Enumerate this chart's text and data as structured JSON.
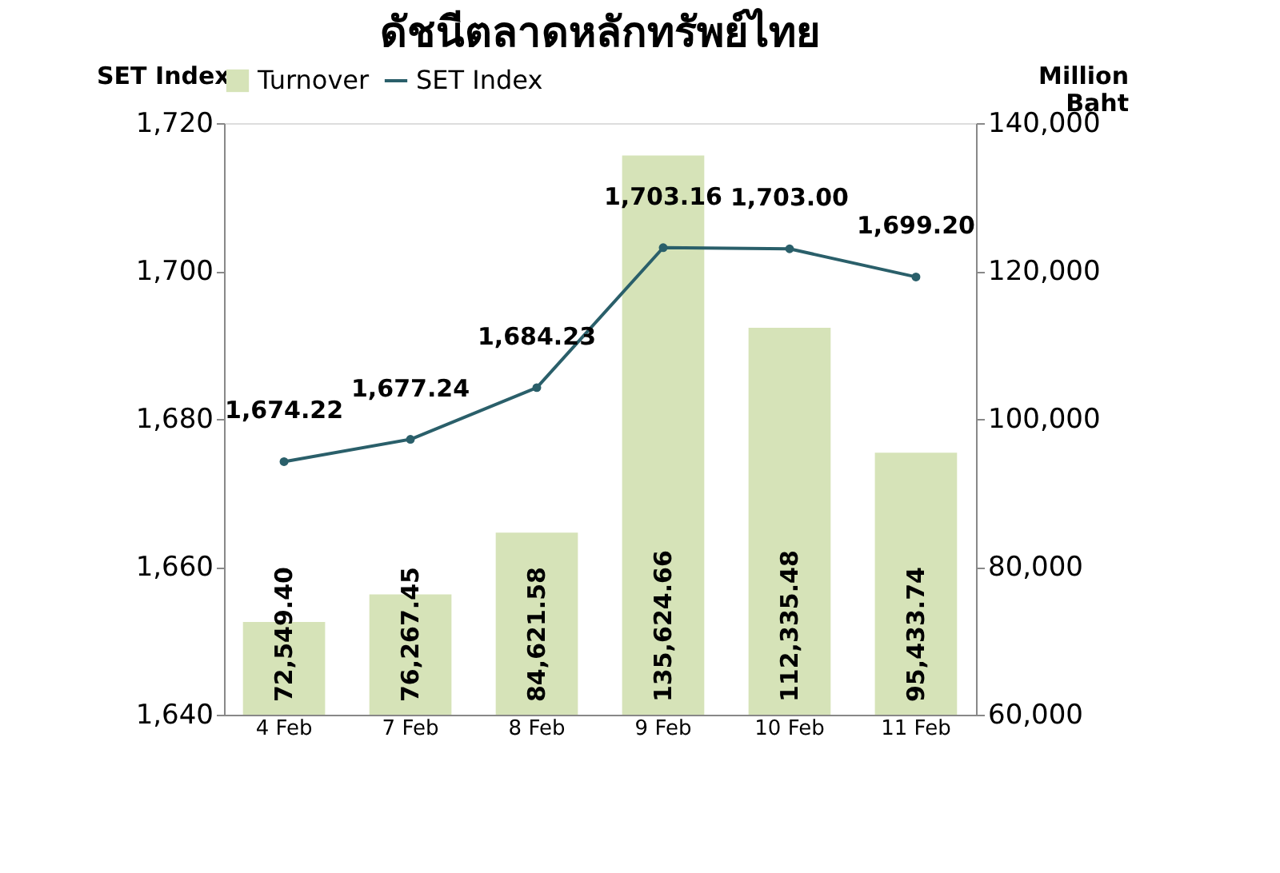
{
  "chart_data": {
    "type": "bar",
    "title": "ดัชนีตลาดหลักทรัพย์ไทย",
    "categories": [
      "4 Feb",
      "7 Feb",
      "8 Feb",
      "9 Feb",
      "10 Feb",
      "11 Feb"
    ],
    "series": [
      {
        "name": "Turnover",
        "axis": "y2",
        "color": "#d6e3b8",
        "values": [
          72549.4,
          76267.45,
          84621.58,
          135624.66,
          112335.48,
          95433.74
        ],
        "value_labels": [
          "72,549.40",
          "76,267.45",
          "84,621.58",
          "135,624.66",
          "112,335.48",
          "95,433.74"
        ]
      },
      {
        "name": "SET Index",
        "type": "line",
        "axis": "y",
        "color": "#2a5f6a",
        "values": [
          1674.22,
          1677.24,
          1684.23,
          1703.16,
          1703.0,
          1699.2
        ],
        "value_labels": [
          "1,674.22",
          "1,677.24",
          "1,684.23",
          "1,703.16",
          "1,703.00",
          "1,699.20"
        ]
      }
    ],
    "ylabel": "SET Index",
    "y2label": "Million Baht",
    "ylim": [
      1640,
      1720
    ],
    "yticks": [
      {
        "value": 1640,
        "label": "1,640"
      },
      {
        "value": 1660,
        "label": "1,660"
      },
      {
        "value": 1680,
        "label": "1,680"
      },
      {
        "value": 1700,
        "label": "1,700"
      },
      {
        "value": 1720,
        "label": "1,720"
      }
    ],
    "y2lim": [
      60000,
      140000
    ],
    "y2ticks": [
      {
        "value": 60000,
        "label": "60,000"
      },
      {
        "value": 80000,
        "label": "80,000"
      },
      {
        "value": 100000,
        "label": "100,000"
      },
      {
        "value": 120000,
        "label": "120,000"
      },
      {
        "value": 140000,
        "label": "140,000"
      }
    ],
    "legend": "top",
    "grid": false,
    "marker": "circle",
    "line_style": "solid"
  }
}
